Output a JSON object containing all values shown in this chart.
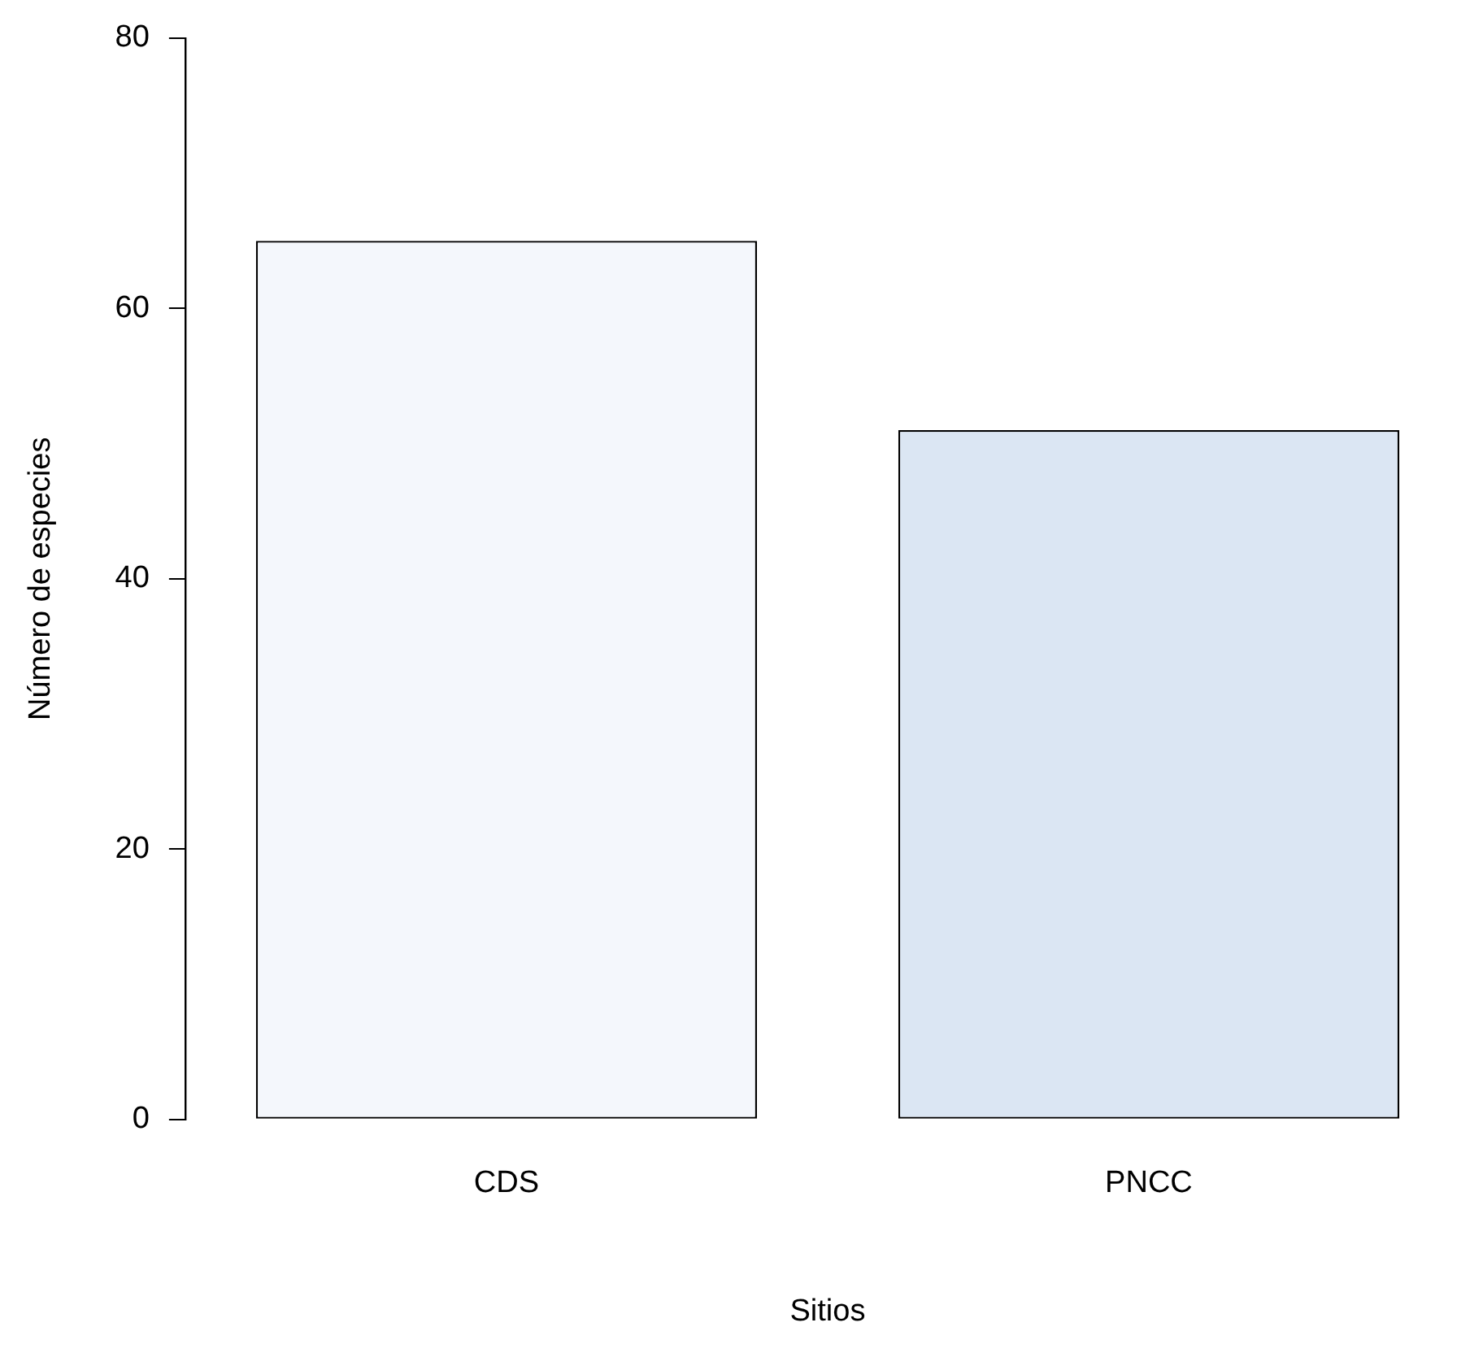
{
  "chart_data": {
    "type": "bar",
    "xlabel": "Sitios",
    "ylabel": "Número de especies",
    "categories": [
      "CDS",
      "PNCC"
    ],
    "values": [
      65,
      51
    ],
    "colors": [
      "#f4f7fc",
      "#dbe6f3"
    ],
    "ylim": [
      0,
      80
    ],
    "yticks": [
      0,
      20,
      40,
      60,
      80
    ],
    "grid": false,
    "legend": false
  }
}
